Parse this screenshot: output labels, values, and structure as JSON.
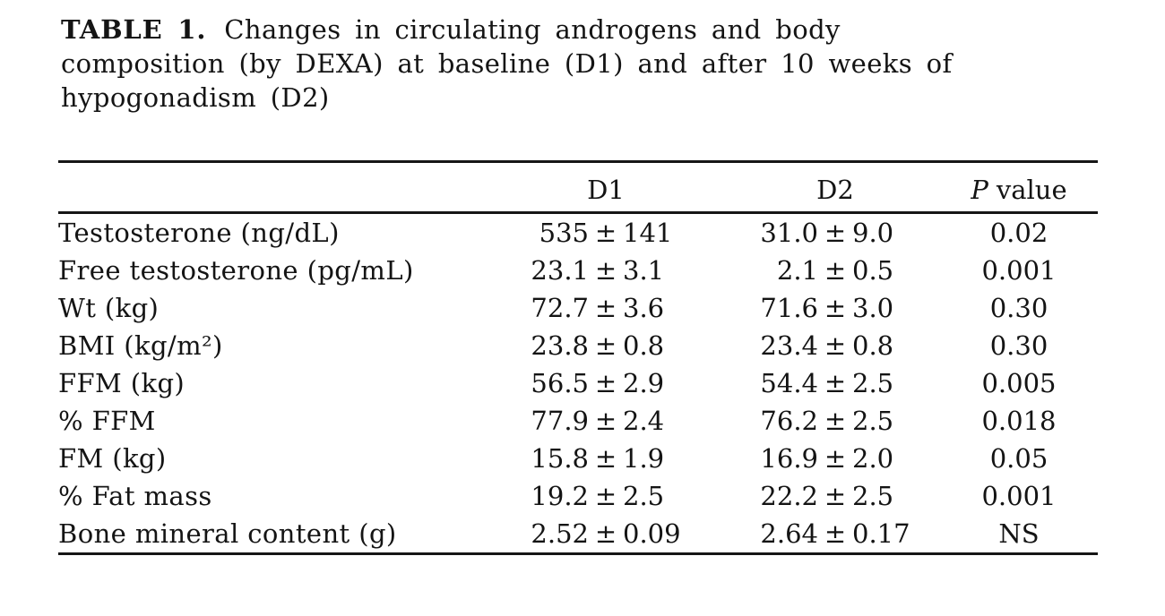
{
  "page": {
    "background": "#ffffff",
    "text_color": "#141414",
    "rule_color": "#161616"
  },
  "caption": {
    "label": "TABLE 1.",
    "line1_rest": "Changes in circulating androgens and body",
    "line2": "composition (by DEXA) at baseline (D1) and after 10 weeks of",
    "line3": "hypogonadism (D2)"
  },
  "table": {
    "headers": {
      "d1": "D1",
      "d2": "D2",
      "p_italic": "P",
      "p_rest": "value"
    },
    "plus_minus": "±",
    "rows": [
      {
        "label": "Testosterone (ng/dL)",
        "d1_mean": "535",
        "d1_sd": "141",
        "d2_mean": "31.0",
        "d2_sd": "9.0",
        "p": "0.02"
      },
      {
        "label": "Free testosterone (pg/mL)",
        "d1_mean": "23.1",
        "d1_sd": "3.1",
        "d2_mean": "2.1",
        "d2_sd": "0.5",
        "p": "0.001"
      },
      {
        "label": "Wt (kg)",
        "d1_mean": "72.7",
        "d1_sd": "3.6",
        "d2_mean": "71.6",
        "d2_sd": "3.0",
        "p": "0.30"
      },
      {
        "label": "BMI (kg/m²)",
        "d1_mean": "23.8",
        "d1_sd": "0.8",
        "d2_mean": "23.4",
        "d2_sd": "0.8",
        "p": "0.30"
      },
      {
        "label": "FFM (kg)",
        "d1_mean": "56.5",
        "d1_sd": "2.9",
        "d2_mean": "54.4",
        "d2_sd": "2.5",
        "p": "0.005"
      },
      {
        "label": "% FFM",
        "d1_mean": "77.9",
        "d1_sd": "2.4",
        "d2_mean": "76.2",
        "d2_sd": "2.5",
        "p": "0.018"
      },
      {
        "label": "FM (kg)",
        "d1_mean": "15.8",
        "d1_sd": "1.9",
        "d2_mean": "16.9",
        "d2_sd": "2.0",
        "p": "0.05"
      },
      {
        "label": "% Fat mass",
        "d1_mean": "19.2",
        "d1_sd": "2.5",
        "d2_mean": "22.2",
        "d2_sd": "2.5",
        "p": "0.001"
      },
      {
        "label": "Bone mineral content (g)",
        "d1_mean": "2.52",
        "d1_sd": "0.09",
        "d2_mean": "2.64",
        "d2_sd": "0.17",
        "p": "NS"
      }
    ]
  }
}
